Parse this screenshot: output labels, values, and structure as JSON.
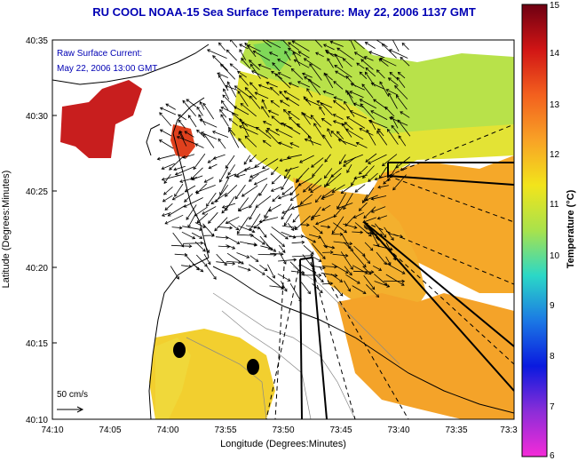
{
  "title": "RU COOL  NOAA-15  Sea Surface Temperature:  May 22, 2006 1137 GMT",
  "overlay": {
    "line1": "Raw Surface Current:",
    "line2": "May 22, 2006 13:00 GMT"
  },
  "scale_label": "50 cm/s",
  "x_axis": {
    "title": "Longitude (Degrees:Minutes)",
    "ticks": [
      "74:10",
      "74:05",
      "74:00",
      "73:55",
      "73:50",
      "73:45",
      "73:40",
      "73:35",
      "73:3"
    ]
  },
  "y_axis": {
    "title": "Latitude (Degrees:Minutes)",
    "ticks": [
      "40:35",
      "40:30",
      "40:25",
      "40:20",
      "40:15",
      "40:10"
    ]
  },
  "colorbar": {
    "title": "Temperature (°C)",
    "ticks": [
      "15",
      "14",
      "13",
      "12",
      "11",
      "10",
      "9",
      "8",
      "7",
      "6"
    ],
    "colors": [
      "#7a0010",
      "#d4141a",
      "#f2581e",
      "#f7a227",
      "#f0e01a",
      "#a9e04a",
      "#2fd9c6",
      "#1c7be4",
      "#0a1ee0",
      "#8a2ad8",
      "#f52ad9"
    ]
  }
}
